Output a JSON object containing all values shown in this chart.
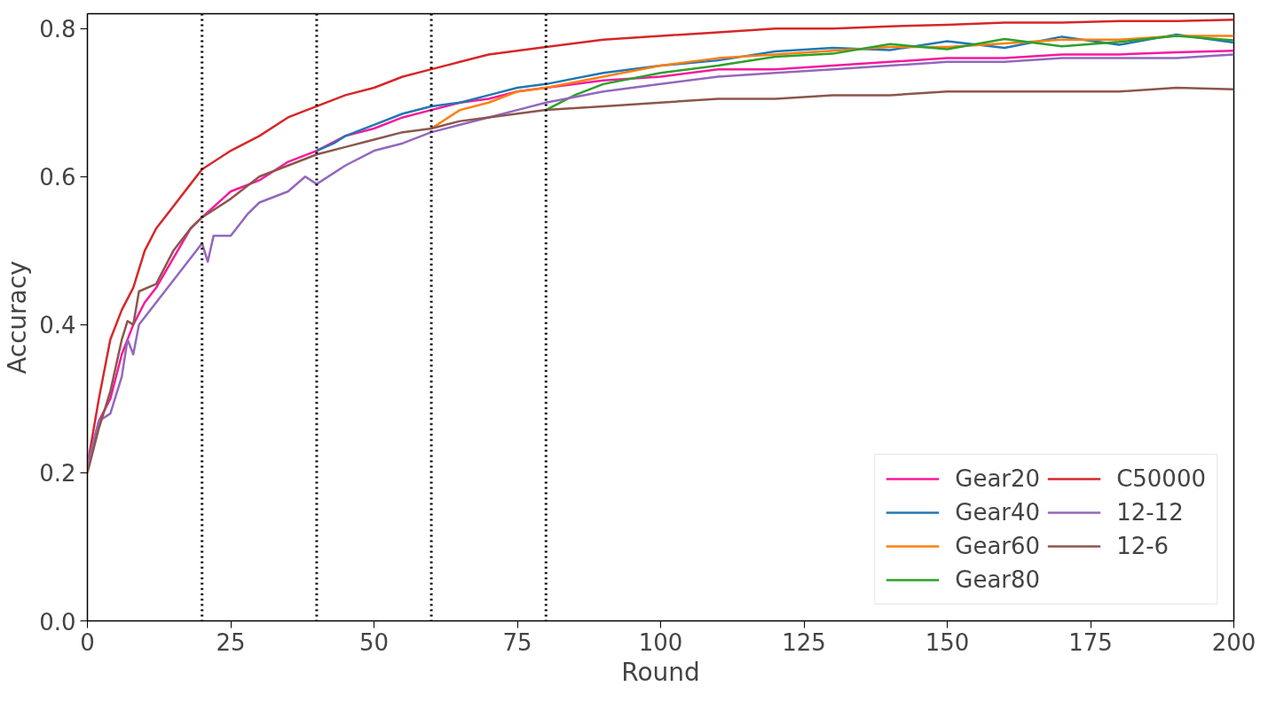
{
  "chart_data": {
    "type": "line",
    "xlabel": "Round",
    "ylabel": "Accuracy",
    "xlim": [
      0,
      200
    ],
    "ylim": [
      0,
      0.82
    ],
    "xticks": [
      0,
      25,
      50,
      75,
      100,
      125,
      150,
      175,
      200
    ],
    "yticks": [
      {
        "value": 0,
        "label": "0.0"
      },
      0.2,
      0.4,
      0.6,
      0.8
    ],
    "grid": false,
    "legend": "bottom right",
    "line_style": "solid",
    "marker": "none",
    "ref_lines": [
      {
        "axis": "x",
        "value": 20,
        "color": "#000000",
        "line_style": "dotted"
      },
      {
        "axis": "x",
        "value": 40,
        "color": "#000000",
        "line_style": "dotted"
      },
      {
        "axis": "x",
        "value": 60,
        "color": "#000000",
        "line_style": "dotted"
      },
      {
        "axis": "x",
        "value": 80,
        "color": "#000000",
        "line_style": "dotted"
      }
    ],
    "series": [
      {
        "name": "Gear20",
        "color": "#f7199e",
        "x": [
          0,
          2,
          4,
          6,
          8,
          10,
          12,
          15,
          18,
          20,
          25,
          30,
          35,
          40,
          45,
          50,
          55,
          60,
          65,
          70,
          75,
          80,
          90,
          100,
          110,
          120,
          130,
          140,
          150,
          160,
          170,
          180,
          190,
          200
        ],
        "values": [
          0.21,
          0.27,
          0.3,
          0.36,
          0.4,
          0.43,
          0.45,
          0.49,
          0.53,
          0.545,
          0.58,
          0.595,
          0.62,
          0.635,
          0.655,
          0.665,
          0.68,
          0.69,
          0.7,
          0.705,
          0.715,
          0.72,
          0.73,
          0.735,
          0.745,
          0.745,
          0.75,
          0.755,
          0.76,
          0.76,
          0.765,
          0.765,
          0.768,
          0.77
        ]
      },
      {
        "name": "Gear40",
        "color": "#1f77b4",
        "x": [
          40,
          43,
          45,
          50,
          55,
          60,
          65,
          70,
          75,
          80,
          90,
          100,
          110,
          120,
          130,
          140,
          150,
          160,
          170,
          180,
          190,
          200
        ],
        "values": [
          0.635,
          0.645,
          0.655,
          0.67,
          0.685,
          0.695,
          0.7,
          0.71,
          0.72,
          0.725,
          0.74,
          0.75,
          0.757,
          0.769,
          0.774,
          0.771,
          0.783,
          0.774,
          0.789,
          0.778,
          0.792,
          0.781
        ]
      },
      {
        "name": "Gear60",
        "color": "#ff7f0e",
        "x": [
          60,
          65,
          70,
          75,
          80,
          90,
          100,
          110,
          120,
          130,
          140,
          150,
          160,
          170,
          180,
          190,
          200
        ],
        "values": [
          0.665,
          0.69,
          0.7,
          0.715,
          0.72,
          0.735,
          0.75,
          0.76,
          0.765,
          0.77,
          0.775,
          0.775,
          0.78,
          0.785,
          0.785,
          0.79,
          0.79
        ]
      },
      {
        "name": "Gear80",
        "color": "#2ca02c",
        "x": [
          80,
          85,
          90,
          100,
          110,
          120,
          130,
          140,
          150,
          160,
          170,
          180,
          190,
          200
        ],
        "values": [
          0.69,
          0.71,
          0.725,
          0.74,
          0.75,
          0.762,
          0.766,
          0.779,
          0.772,
          0.786,
          0.776,
          0.782,
          0.79,
          0.784
        ]
      },
      {
        "name": "C50000",
        "color": "#d62728",
        "x": [
          0,
          2,
          4,
          6,
          8,
          10,
          12,
          15,
          18,
          20,
          25,
          30,
          35,
          40,
          45,
          50,
          55,
          60,
          65,
          70,
          75,
          80,
          90,
          100,
          110,
          120,
          130,
          140,
          150,
          160,
          170,
          180,
          190,
          200
        ],
        "values": [
          0.21,
          0.3,
          0.38,
          0.42,
          0.45,
          0.5,
          0.53,
          0.56,
          0.59,
          0.61,
          0.635,
          0.655,
          0.68,
          0.695,
          0.71,
          0.72,
          0.735,
          0.745,
          0.755,
          0.765,
          0.77,
          0.775,
          0.785,
          0.79,
          0.795,
          0.8,
          0.8,
          0.803,
          0.805,
          0.808,
          0.808,
          0.81,
          0.81,
          0.812
        ]
      },
      {
        "name": "12-12",
        "color": "#9467bd",
        "x": [
          0,
          2,
          4,
          6,
          7,
          8,
          9,
          12,
          15,
          18,
          20,
          21,
          22,
          25,
          28,
          30,
          35,
          38,
          40,
          45,
          50,
          55,
          60,
          65,
          70,
          75,
          80,
          90,
          100,
          110,
          120,
          130,
          140,
          150,
          160,
          170,
          180,
          190,
          200
        ],
        "values": [
          0.21,
          0.27,
          0.28,
          0.33,
          0.38,
          0.36,
          0.4,
          0.43,
          0.46,
          0.49,
          0.51,
          0.485,
          0.52,
          0.52,
          0.55,
          0.565,
          0.58,
          0.6,
          0.59,
          0.615,
          0.635,
          0.645,
          0.66,
          0.67,
          0.68,
          0.69,
          0.7,
          0.715,
          0.725,
          0.735,
          0.74,
          0.745,
          0.75,
          0.755,
          0.755,
          0.76,
          0.76,
          0.76,
          0.765
        ]
      },
      {
        "name": "12-6",
        "color": "#8c564b",
        "x": [
          0,
          2,
          4,
          6,
          7,
          8,
          9,
          12,
          15,
          18,
          20,
          25,
          30,
          35,
          40,
          45,
          50,
          55,
          60,
          65,
          70,
          75,
          80,
          90,
          100,
          110,
          120,
          130,
          140,
          150,
          160,
          170,
          180,
          190,
          200
        ],
        "values": [
          0.2,
          0.26,
          0.31,
          0.38,
          0.405,
          0.4,
          0.445,
          0.455,
          0.5,
          0.53,
          0.545,
          0.57,
          0.6,
          0.615,
          0.63,
          0.64,
          0.65,
          0.66,
          0.665,
          0.675,
          0.68,
          0.685,
          0.69,
          0.695,
          0.7,
          0.705,
          0.705,
          0.71,
          0.71,
          0.715,
          0.715,
          0.715,
          0.715,
          0.72,
          0.718
        ]
      }
    ]
  }
}
